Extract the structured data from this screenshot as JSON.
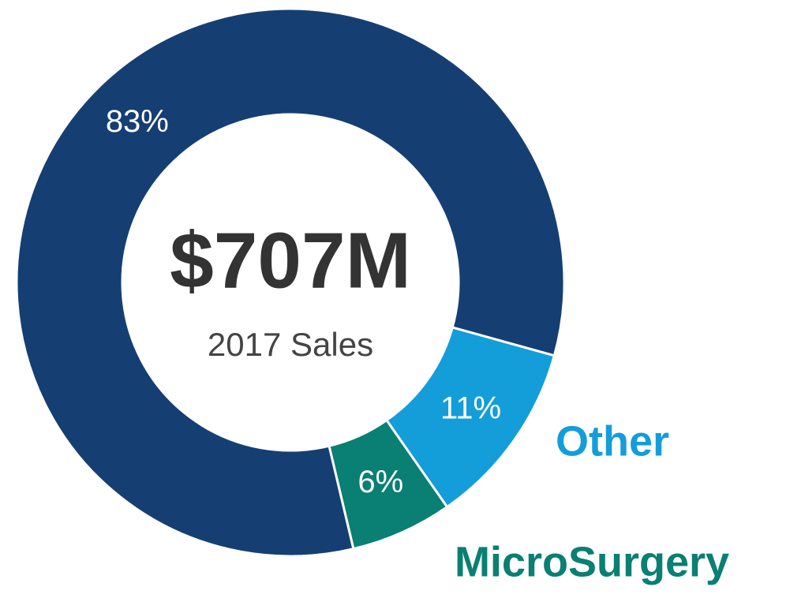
{
  "chart_data": {
    "type": "donut",
    "title": "$707M",
    "subtitle": "2017 Sales",
    "categories": [
      "Other",
      "MicroSurgery",
      null
    ],
    "values": [
      11,
      6,
      83
    ],
    "value_labels": [
      "11%",
      "6%",
      "83%"
    ],
    "colors": [
      "#139dd9",
      "#0a7f73",
      "#153f73"
    ]
  }
}
